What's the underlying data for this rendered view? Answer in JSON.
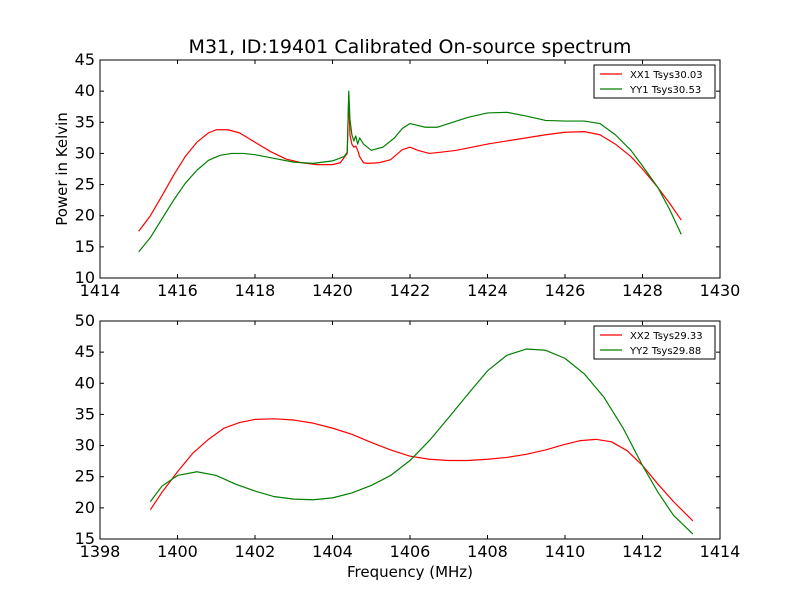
{
  "chart_data": [
    {
      "type": "line",
      "title": "M31, ID:19401 Calibrated On-source spectrum",
      "xlabel": "",
      "ylabel": "Power in Kelvin",
      "xlim": [
        1414,
        1430
      ],
      "ylim": [
        10,
        45
      ],
      "xticks": [
        "1414",
        "1416",
        "1418",
        "1420",
        "1422",
        "1424",
        "1426",
        "1428",
        "1430"
      ],
      "yticks": [
        "10",
        "15",
        "20",
        "25",
        "30",
        "35",
        "40",
        "45"
      ],
      "legend_position": "top-right",
      "series": [
        {
          "name": "XX1 Tsys30.03",
          "color": "#ff0000",
          "x": [
            1415.0,
            1415.3,
            1415.6,
            1415.9,
            1416.2,
            1416.5,
            1416.8,
            1417.0,
            1417.3,
            1417.6,
            1418.0,
            1418.4,
            1418.8,
            1419.2,
            1419.6,
            1420.0,
            1420.2,
            1420.38,
            1420.42,
            1420.45,
            1420.5,
            1420.55,
            1420.6,
            1420.65,
            1420.7,
            1420.8,
            1420.9,
            1421.2,
            1421.5,
            1421.8,
            1422.0,
            1422.2,
            1422.5,
            1422.8,
            1423.2,
            1423.6,
            1424.0,
            1424.5,
            1425.0,
            1425.5,
            1426.0,
            1426.5,
            1426.9,
            1427.3,
            1427.7,
            1428.0,
            1428.4,
            1428.7,
            1429.0
          ],
          "values": [
            17.5,
            20.0,
            23.2,
            26.5,
            29.5,
            31.8,
            33.3,
            33.8,
            33.8,
            33.3,
            31.8,
            30.3,
            29.1,
            28.5,
            28.2,
            28.2,
            28.5,
            30.0,
            39.5,
            33.0,
            31.5,
            31.0,
            31.2,
            30.5,
            29.5,
            28.5,
            28.4,
            28.5,
            29.0,
            30.6,
            31.0,
            30.5,
            30.0,
            30.2,
            30.5,
            31.0,
            31.5,
            32.0,
            32.5,
            33.0,
            33.4,
            33.5,
            33.0,
            31.5,
            29.5,
            27.5,
            24.5,
            22.0,
            19.3
          ]
        },
        {
          "name": "YY1 Tsys30.53",
          "color": "#008000",
          "x": [
            1415.0,
            1415.3,
            1415.6,
            1415.9,
            1416.2,
            1416.5,
            1416.8,
            1417.1,
            1417.4,
            1417.7,
            1418.0,
            1418.5,
            1419.0,
            1419.5,
            1420.0,
            1420.3,
            1420.38,
            1420.42,
            1420.45,
            1420.5,
            1420.55,
            1420.6,
            1420.65,
            1420.7,
            1420.8,
            1421.0,
            1421.3,
            1421.6,
            1421.8,
            1422.0,
            1422.2,
            1422.4,
            1422.7,
            1423.0,
            1423.5,
            1424.0,
            1424.5,
            1425.0,
            1425.5,
            1426.0,
            1426.5,
            1426.9,
            1427.3,
            1427.7,
            1428.0,
            1428.4,
            1428.7,
            1429.0
          ],
          "values": [
            14.2,
            16.5,
            19.5,
            22.5,
            25.2,
            27.3,
            28.9,
            29.7,
            30.0,
            30.0,
            29.8,
            29.2,
            28.6,
            28.4,
            28.8,
            29.5,
            30.2,
            40.0,
            35.5,
            33.0,
            32.0,
            32.8,
            31.5,
            32.5,
            31.5,
            30.5,
            31.0,
            32.5,
            34.0,
            34.8,
            34.5,
            34.2,
            34.2,
            34.8,
            35.8,
            36.5,
            36.6,
            36.0,
            35.3,
            35.2,
            35.2,
            34.8,
            33.0,
            30.5,
            28.0,
            24.5,
            21.0,
            17.0
          ]
        }
      ]
    },
    {
      "type": "line",
      "title": "",
      "xlabel": "Frequency (MHz)",
      "ylabel": "",
      "xlim": [
        1398,
        1414
      ],
      "ylim": [
        15,
        50
      ],
      "xticks": [
        "1398",
        "1400",
        "1402",
        "1404",
        "1406",
        "1408",
        "1410",
        "1412",
        "1414"
      ],
      "yticks": [
        "15",
        "20",
        "25",
        "30",
        "35",
        "40",
        "45",
        "50"
      ],
      "legend_position": "top-right",
      "series": [
        {
          "name": "XX2 Tsys29.33",
          "color": "#ff0000",
          "x": [
            1399.3,
            1399.6,
            1400.0,
            1400.4,
            1400.8,
            1401.2,
            1401.6,
            1402.0,
            1402.5,
            1403.0,
            1403.5,
            1404.0,
            1404.5,
            1405.0,
            1405.5,
            1406.0,
            1406.5,
            1407.0,
            1407.5,
            1408.0,
            1408.5,
            1409.0,
            1409.5,
            1410.0,
            1410.4,
            1410.8,
            1411.2,
            1411.6,
            1412.0,
            1412.4,
            1412.8,
            1413.3
          ],
          "values": [
            19.7,
            22.5,
            25.8,
            28.8,
            31.0,
            32.8,
            33.7,
            34.2,
            34.3,
            34.1,
            33.6,
            32.8,
            31.8,
            30.5,
            29.3,
            28.3,
            27.8,
            27.6,
            27.6,
            27.8,
            28.1,
            28.6,
            29.3,
            30.2,
            30.8,
            31.0,
            30.6,
            29.2,
            26.8,
            23.8,
            21.0,
            17.9
          ]
        },
        {
          "name": "YY2 Tsys29.88",
          "color": "#008000",
          "x": [
            1399.3,
            1399.6,
            1400.0,
            1400.5,
            1401.0,
            1401.5,
            1402.0,
            1402.5,
            1403.0,
            1403.5,
            1404.0,
            1404.5,
            1405.0,
            1405.5,
            1406.0,
            1406.5,
            1407.0,
            1407.5,
            1408.0,
            1408.5,
            1409.0,
            1409.5,
            1410.0,
            1410.5,
            1411.0,
            1411.5,
            1412.0,
            1412.4,
            1412.8,
            1413.3
          ],
          "values": [
            21.0,
            23.5,
            25.2,
            25.8,
            25.2,
            23.8,
            22.7,
            21.8,
            21.4,
            21.3,
            21.6,
            22.4,
            23.6,
            25.2,
            27.6,
            30.8,
            34.5,
            38.3,
            42.0,
            44.5,
            45.5,
            45.3,
            44.0,
            41.5,
            37.8,
            32.8,
            26.8,
            22.5,
            18.8,
            15.8
          ]
        }
      ]
    }
  ]
}
